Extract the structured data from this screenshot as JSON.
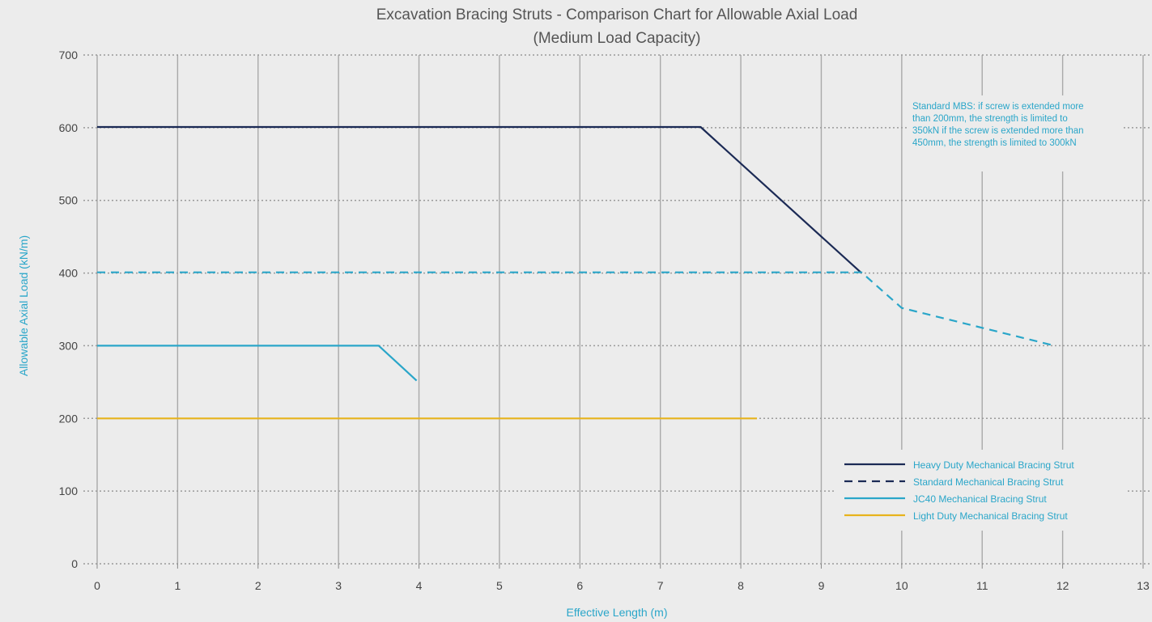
{
  "chart_data": {
    "type": "line",
    "title_line1": "Excavation Bracing Struts - Comparison Chart for Allowable Axial Load",
    "title_line2": "(Medium Load Capacity)",
    "xlabel": "Effective Length (m)",
    "ylabel": "Allowable Axial Load (kN/m)",
    "xlim": [
      0,
      13
    ],
    "ylim": [
      0,
      700
    ],
    "x_ticks": [
      "0",
      "1",
      "2",
      "3",
      "4",
      "5",
      "6",
      "7",
      "8",
      "9",
      "10",
      "11",
      "12",
      "13"
    ],
    "y_ticks": [
      "0",
      "100",
      "200",
      "300",
      "400",
      "500",
      "600",
      "700"
    ],
    "grid": true,
    "legend_position": "bottom-right",
    "series": [
      {
        "name": "Heavy Duty Mechanical Bracing Strut",
        "color": "#1b2a55",
        "dash": "solid",
        "points": [
          [
            0,
            601
          ],
          [
            7.5,
            601
          ],
          [
            9.5,
            400
          ]
        ]
      },
      {
        "name": "Standard Mechanical Bracing Strut",
        "color": "#2aa6c9",
        "legend_color": "#1b2a55",
        "dash": "dashed",
        "points": [
          [
            0,
            401
          ],
          [
            9.5,
            401
          ],
          [
            10,
            352
          ],
          [
            11.9,
            300
          ]
        ]
      },
      {
        "name": "JC40 Mechanical Bracing Strut",
        "color": "#2aa6c9",
        "dash": "solid",
        "points": [
          [
            0,
            300
          ],
          [
            3.5,
            300
          ],
          [
            3.97,
            252
          ]
        ]
      },
      {
        "name": "Light Duty Mechanical Bracing Strut",
        "color": "#e7b31c",
        "dash": "solid",
        "points": [
          [
            0,
            200
          ],
          [
            8.2,
            200
          ]
        ]
      }
    ],
    "annotations": [
      "Standard MBS: if screw is extended more",
      "than 200mm, the strength is limited to",
      "350kN if the screw is extended more than",
      "450mm, the strength is limited to 300kN"
    ]
  }
}
